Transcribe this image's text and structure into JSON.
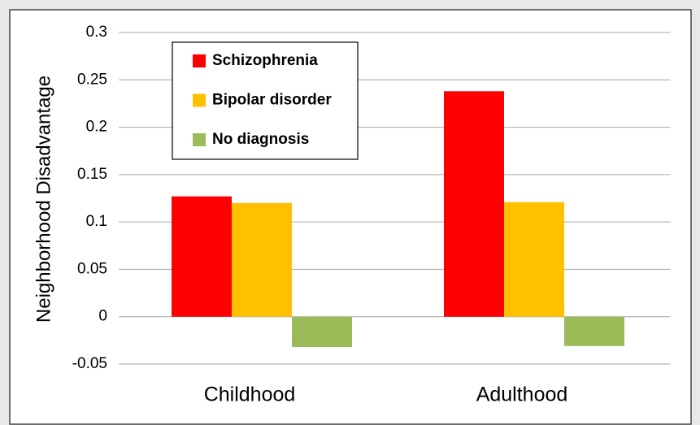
{
  "chart_data": {
    "type": "bar",
    "y_label": "Neighborhood Disadvantage",
    "categories": [
      "Childhood",
      "Adulthood"
    ],
    "series": [
      {
        "name": "Schizophrenia",
        "color": "#ff0000",
        "values": [
          0.127,
          0.238
        ]
      },
      {
        "name": "Bipolar disorder",
        "color": "#ffc000",
        "values": [
          0.12,
          0.121
        ]
      },
      {
        "name": "No diagnosis",
        "color": "#9bbb59",
        "values": [
          -0.032,
          -0.031
        ]
      }
    ],
    "ylim": [
      -0.05,
      0.3
    ],
    "yticks": [
      -0.05,
      0,
      0.05,
      0.1,
      0.15,
      0.2,
      0.25,
      0.3
    ],
    "grid": true,
    "legend": "upper left"
  }
}
